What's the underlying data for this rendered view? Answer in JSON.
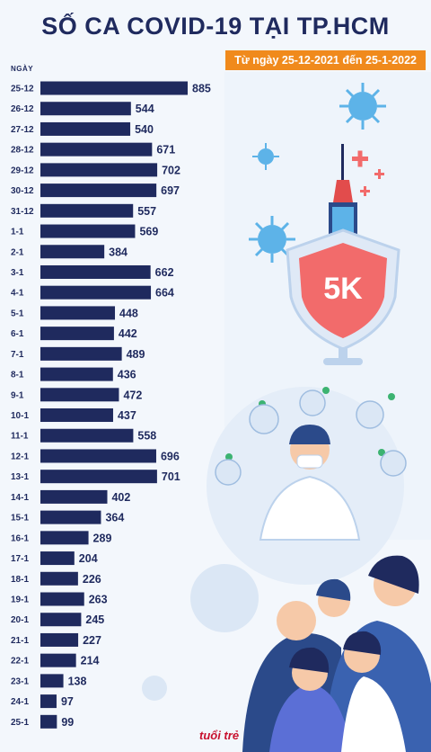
{
  "header": {
    "title": "SỐ CA COVID-19 TẠI TP.HCM",
    "subtitle": "Từ ngày 25-12-2021 đến 25-1-2022",
    "y_axis_label": "NGÀY"
  },
  "logo": {
    "text": "tuổi trẻ"
  },
  "colors": {
    "bar": "#1f2a5e",
    "accent": "#f08a1c",
    "shield": "#f26b6b",
    "virus": "#5db3e8"
  },
  "illustration": {
    "shield_text": "5K",
    "icons": [
      "virus-icon",
      "syringe-icon",
      "shield-icon",
      "doctor-icon",
      "crowd-icon",
      "checkmark-icon",
      "plus-icon"
    ]
  },
  "chart_data": {
    "type": "bar",
    "orientation": "horizontal",
    "categories": [
      "25-12",
      "26-12",
      "27-12",
      "28-12",
      "29-12",
      "30-12",
      "31-12",
      "1-1",
      "2-1",
      "3-1",
      "4-1",
      "5-1",
      "6-1",
      "7-1",
      "8-1",
      "9-1",
      "10-1",
      "11-1",
      "12-1",
      "13-1",
      "14-1",
      "15-1",
      "16-1",
      "17-1",
      "18-1",
      "19-1",
      "20-1",
      "21-1",
      "22-1",
      "23-1",
      "24-1",
      "25-1"
    ],
    "values": [
      885,
      544,
      540,
      671,
      702,
      697,
      557,
      569,
      384,
      662,
      664,
      448,
      442,
      489,
      436,
      472,
      437,
      558,
      696,
      701,
      402,
      364,
      289,
      204,
      226,
      263,
      245,
      227,
      214,
      138,
      97,
      99
    ],
    "title": "SỐ CA COVID-19 TẠI TP.HCM",
    "ylabel": "NGÀY",
    "xlim": [
      0,
      885
    ],
    "grid": false,
    "legend": "none"
  }
}
